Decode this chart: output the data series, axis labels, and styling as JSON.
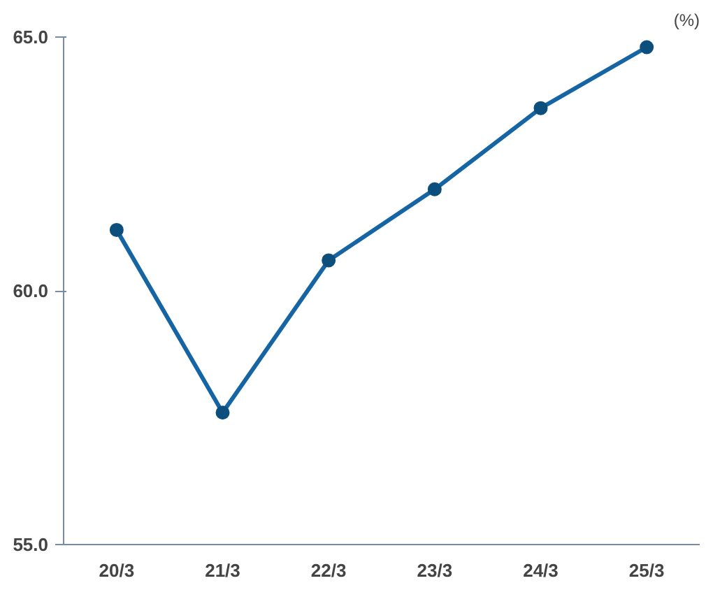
{
  "chart_data": {
    "type": "line",
    "ylabel": "(%)",
    "categories": [
      "20/3",
      "21/3",
      "22/3",
      "23/3",
      "24/3",
      "25/3"
    ],
    "series": [
      {
        "color": "#1565a5",
        "values": [
          61.2,
          57.6,
          60.6,
          62.0,
          63.6,
          64.8
        ]
      }
    ],
    "ylim": [
      55,
      65
    ],
    "yticks": [
      {
        "value": 55,
        "label": "55.0"
      },
      {
        "value": 60,
        "label": "60.0"
      },
      {
        "value": 65,
        "label": "65.0"
      }
    ],
    "grid": false,
    "marker": "circle",
    "line_style": "solid"
  }
}
